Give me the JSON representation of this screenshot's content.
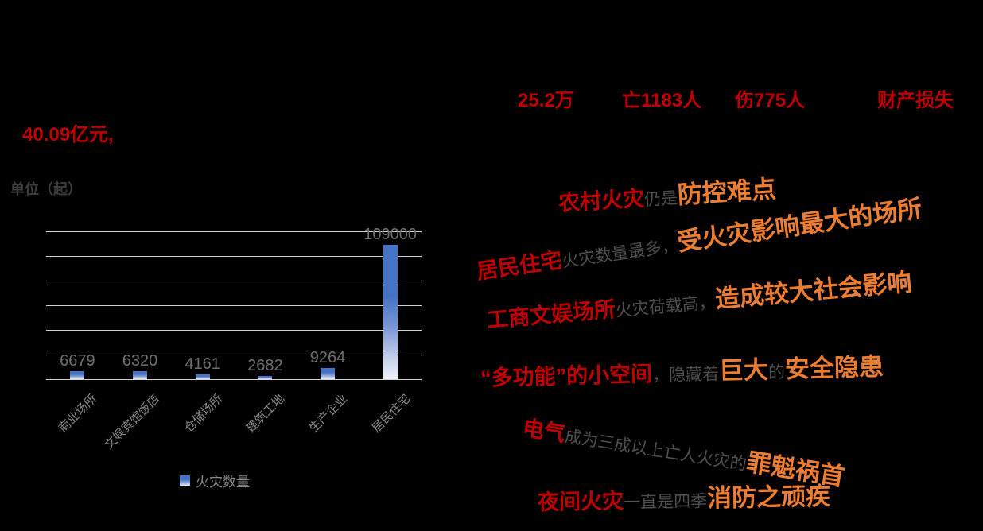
{
  "colors": {
    "background": "#000000",
    "stat_red": "#c00000",
    "highlight_orange": "#ed7d31",
    "body_gray": "#4f4f4f",
    "bar_blue": "#4472c4",
    "gridline_gray": "#cfcfcf"
  },
  "stats": {
    "fires_total": "25.2万",
    "deaths": "亡1183人",
    "injuries": "伤775人",
    "property_loss_label": "财产损失",
    "property_loss_value": "40.09亿元,"
  },
  "chart": {
    "unit_label": "单位（起）",
    "legend_label": "火灾数量"
  },
  "chart_data": {
    "type": "bar",
    "title": "",
    "categories": [
      "商业场所",
      "文娱宾馆饭店",
      "仓储场所",
      "建筑工地",
      "生产企业",
      "居民住宅"
    ],
    "series": [
      {
        "name": "火灾数量",
        "values": [
          6679,
          6320,
          4161,
          2682,
          9264,
          109000
        ]
      }
    ],
    "xlabel": "",
    "ylabel": "单位（起）",
    "ylim": [
      0,
      120000
    ],
    "gridline_step": 20000,
    "grid": true,
    "legend_position": "bottom",
    "data_labels": [
      "6679",
      "6320",
      "4161",
      "2682",
      "9264",
      "109000"
    ]
  },
  "taglines": [
    {
      "segments": [
        {
          "text": "农村火灾",
          "tone": "red"
        },
        {
          "text": "仍是",
          "tone": "gray"
        },
        {
          "text": "防控难点",
          "tone": "orange"
        }
      ]
    },
    {
      "segments": [
        {
          "text": "居民住宅",
          "tone": "red"
        },
        {
          "text": "火灾数量最多，",
          "tone": "gray"
        },
        {
          "text": "受火灾影响最大的场所",
          "tone": "orange"
        }
      ]
    },
    {
      "segments": [
        {
          "text": "工商文娱场所",
          "tone": "red"
        },
        {
          "text": "火灾荷载高，",
          "tone": "gray"
        },
        {
          "text": "造成较大社会影响",
          "tone": "orange"
        }
      ]
    },
    {
      "segments": [
        {
          "text": "“多功能”的小空间",
          "tone": "red"
        },
        {
          "text": "，隐藏着",
          "tone": "gray"
        },
        {
          "text": "巨大",
          "tone": "orange"
        },
        {
          "text": "的",
          "tone": "gray"
        },
        {
          "text": "安全隐患",
          "tone": "orange"
        }
      ]
    },
    {
      "segments": [
        {
          "text": "电气",
          "tone": "red"
        },
        {
          "text": "成为三成以上亡人火灾的",
          "tone": "gray"
        },
        {
          "text": "罪魁祸首",
          "tone": "orange"
        }
      ]
    },
    {
      "segments": [
        {
          "text": "夜间火灾",
          "tone": "red"
        },
        {
          "text": "一直是四季",
          "tone": "gray"
        },
        {
          "text": "消防之顽疾",
          "tone": "orange"
        }
      ]
    }
  ]
}
